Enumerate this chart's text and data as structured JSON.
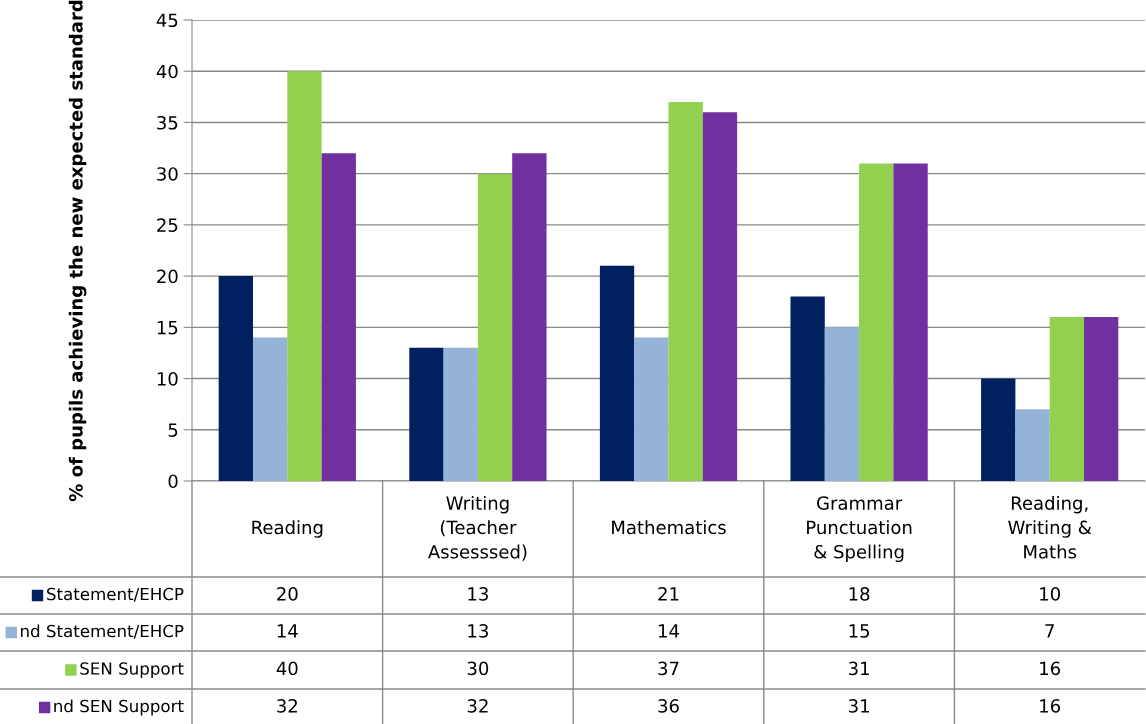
{
  "chart_data": {
    "type": "bar",
    "ylabel": "% of pupils achieving the new expected standard",
    "categories": [
      "Reading",
      "Writing\n(Teacher\nAssesssed)",
      "Mathematics",
      "Grammar\nPunctuation\n& Spelling",
      "Reading,\nWriting &\nMaths"
    ],
    "series": [
      {
        "name": "Statement/EHCP",
        "color": "#002060",
        "values": [
          20,
          13,
          21,
          18,
          10
        ]
      },
      {
        "name": "nd Statement/EHCP",
        "color": "#95b3d7",
        "values": [
          14,
          13,
          14,
          15,
          7
        ]
      },
      {
        "name": "SEN Support",
        "color": "#92d050",
        "values": [
          40,
          30,
          37,
          31,
          16
        ]
      },
      {
        "name": "nd SEN Support",
        "color": "#7030a0",
        "values": [
          32,
          32,
          36,
          31,
          16
        ]
      }
    ],
    "ylim": [
      0,
      45
    ],
    "yticks": [
      0,
      5,
      10,
      15,
      20,
      25,
      30,
      35,
      40,
      45
    ],
    "grid": "y",
    "data_labels": true,
    "legend": "bottom left"
  }
}
